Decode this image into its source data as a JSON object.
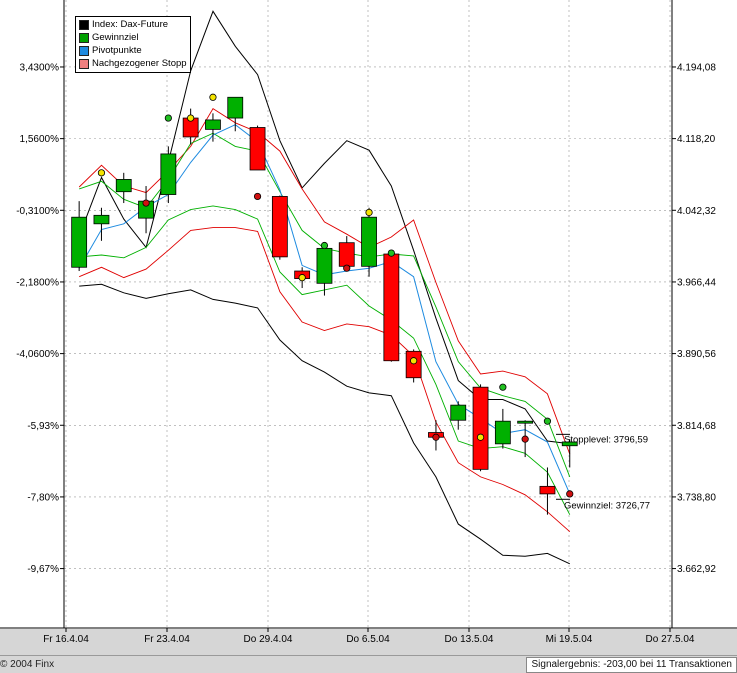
{
  "chart_data": {
    "type": "candlestick",
    "legend": [
      {
        "label": "Index: Dax-Future",
        "color": "#000000"
      },
      {
        "label": "Gewinnziel",
        "color": "#00a000"
      },
      {
        "label": "Pivotpunkte",
        "color": "#1e8be0"
      },
      {
        "label": "Nachgezogener Stopp",
        "color": "#f08080"
      }
    ],
    "right_axis": {
      "ticks": [
        4194.08,
        4118.2,
        4042.32,
        3966.44,
        3890.56,
        3814.68,
        3738.8,
        3662.92
      ],
      "tick_labels": [
        "4.194,08",
        "4.118,20",
        "4.042,32",
        "3.966,44",
        "3.890,56",
        "3.814,68",
        "3.738,80",
        "3.662,92"
      ],
      "range": [
        3600,
        4265
      ]
    },
    "left_axis": {
      "tick_labels": [
        "3,4300%",
        "1,5600%",
        "-0,3100%",
        "-2,1800%",
        "-4,0600%",
        "-5,93%",
        "-7,80%",
        "-9,67%"
      ]
    },
    "x_axis": {
      "tick_labels": [
        "Fr 16.4.04",
        "Fr 23.4.04",
        "Do 29.4.04",
        "Do 6.5.04",
        "Do 13.5.04",
        "Mi 19.5.04",
        "Do 27.5.04"
      ]
    },
    "candles": [
      {
        "o": 3982,
        "h": 4052,
        "l": 3978,
        "c": 4035,
        "pivot": 3992
      },
      {
        "o": 4028,
        "h": 4045,
        "l": 4010,
        "c": 4037,
        "pivot": 4028
      },
      {
        "o": 4062,
        "h": 4082,
        "l": 4050,
        "c": 4075,
        "pivot": 4065
      },
      {
        "o": 4034,
        "h": 4068,
        "l": 4018,
        "c": 4052,
        "pivot": 4034
      },
      {
        "o": 4059,
        "h": 4110,
        "l": 4050,
        "c": 4102,
        "pivot": 4060
      },
      {
        "o": 4140,
        "h": 4150,
        "l": 4112,
        "c": 4120,
        "pivot": 4137
      },
      {
        "o": 4128,
        "h": 4145,
        "l": 4115,
        "c": 4138,
        "pivot": 4135
      },
      {
        "o": 4140,
        "h": 4162,
        "l": 4126,
        "c": 4162,
        "pivot": 4162
      },
      {
        "o": 4130,
        "h": 4132,
        "l": 4085,
        "c": 4085,
        "pivot": 4132
      },
      {
        "o": 4057,
        "h": 4058,
        "l": 3990,
        "c": 3993,
        "pivot": 4054
      },
      {
        "o": 3978,
        "h": 3982,
        "l": 3960,
        "c": 3970,
        "pivot": 3970
      },
      {
        "o": 3965,
        "h": 4005,
        "l": 3952,
        "c": 4002,
        "pivot": 3980
      },
      {
        "o": 4008,
        "h": 4015,
        "l": 3980,
        "c": 3983,
        "pivot": 3983
      },
      {
        "o": 3983,
        "h": 4045,
        "l": 3972,
        "c": 4035,
        "pivot": 4035
      },
      {
        "o": 3996,
        "h": 4000,
        "l": 3882,
        "c": 3883,
        "pivot": 3883
      },
      {
        "o": 3893,
        "h": 3895,
        "l": 3860,
        "c": 3865,
        "pivot": 3865
      },
      {
        "o": 3807,
        "h": 3820,
        "l": 3788,
        "c": 3802,
        "pivot": 3802
      },
      {
        "o": 3820,
        "h": 3840,
        "l": 3810,
        "c": 3836,
        "pivot": 3820
      },
      {
        "o": 3855,
        "h": 3858,
        "l": 3766,
        "c": 3768,
        "pivot": 3855
      },
      {
        "o": 3795,
        "h": 3832,
        "l": 3790,
        "c": 3819,
        "pivot": 3819
      },
      {
        "o": 3819,
        "h": 3820,
        "l": 3781,
        "c": 3819,
        "pivot": 3819
      },
      {
        "o": 3750,
        "h": 3770,
        "l": 3720,
        "c": 3742,
        "pivot": 3742
      },
      {
        "o": 3793,
        "h": 3800,
        "l": 3770,
        "c": 3797,
        "pivot": 3797
      }
    ],
    "bands": {
      "black_upper": [
        4015,
        4077,
        4033,
        4003,
        4093,
        4190,
        4253,
        4216,
        4186,
        4116,
        4066,
        4092,
        4116,
        4106,
        4068,
        4000,
        3928,
        3862,
        3842,
        3842,
        3832,
        3798,
        3795
      ],
      "red_upper": [
        4067,
        4090,
        4068,
        4061,
        4084,
        4110,
        4150,
        4135,
        4125,
        4105,
        4065,
        4030,
        4017,
        4003,
        4014,
        4032,
        3966,
        3904,
        3869,
        3872,
        3866,
        3848,
        3784
      ],
      "green_upper": [
        4065,
        4073,
        4054,
        4045,
        4075,
        4113,
        4124,
        4110,
        4105,
        4062,
        4021,
        4002,
        3997,
        3993,
        3996,
        3994,
        3940,
        3882,
        3854,
        3846,
        3840,
        3821,
        3760
      ],
      "blue_pivot": [
        3981,
        4022,
        4028,
        4046,
        4059,
        4093,
        4122,
        4133,
        4115,
        4064,
        3984,
        3974,
        3978,
        3981,
        3988,
        3972,
        3882,
        3837,
        3822,
        3806,
        3810,
        3797,
        3742
      ],
      "green_lower": [
        3993,
        3995,
        3992,
        4003,
        4032,
        4043,
        4047,
        4043,
        4033,
        3977,
        3953,
        3958,
        3963,
        3941,
        3926,
        3907,
        3858,
        3798,
        3790,
        3792,
        3785,
        3765,
        3720
      ],
      "red_lower": [
        3972,
        3982,
        3971,
        3980,
        4000,
        4021,
        4024,
        4024,
        4020,
        3956,
        3924,
        3915,
        3922,
        3919,
        3910,
        3888,
        3818,
        3775,
        3760,
        3752,
        3741,
        3723,
        3702
      ],
      "black_lower": [
        3962,
        3964,
        3955,
        3949,
        3954,
        3958,
        3948,
        3944,
        3939,
        3905,
        3883,
        3871,
        3856,
        3849,
        3846,
        3796,
        3760,
        3710,
        3694,
        3677,
        3676,
        3679,
        3668
      ]
    },
    "markers": [
      {
        "i": 2,
        "v": 4082,
        "color": "#f5e400"
      },
      {
        "i": 4,
        "v": 4050,
        "color": "#d01010"
      },
      {
        "i": 5,
        "v": 4140,
        "color": "#20c020"
      },
      {
        "i": 6,
        "v": 4140,
        "color": "#f5e400"
      },
      {
        "i": 7,
        "v": 4162,
        "color": "#f5e400"
      },
      {
        "i": 9,
        "v": 4057,
        "color": "#d01010"
      },
      {
        "i": 11,
        "v": 3971,
        "color": "#f5e400"
      },
      {
        "i": 12,
        "v": 4005,
        "color": "#20c020"
      },
      {
        "i": 13,
        "v": 3981,
        "color": "#d01010"
      },
      {
        "i": 14,
        "v": 4040,
        "color": "#f5e400"
      },
      {
        "i": 15,
        "v": 3997,
        "color": "#20c020"
      },
      {
        "i": 16,
        "v": 3883,
        "color": "#f5e400"
      },
      {
        "i": 17,
        "v": 3802,
        "color": "#d01010"
      },
      {
        "i": 19,
        "v": 3802,
        "color": "#f5e400"
      },
      {
        "i": 20,
        "v": 3855,
        "color": "#20c020"
      },
      {
        "i": 21,
        "v": 3800,
        "color": "#d01010"
      },
      {
        "i": 22,
        "v": 3819,
        "color": "#20c020"
      },
      {
        "i": 23,
        "v": 3742,
        "color": "#d01010"
      }
    ],
    "annotations": {
      "stop_label": "Stopplevel: 3796,59",
      "stop_value": 3796.59,
      "target_label": "Gewinnziel: 3726,77",
      "target_value": 3726.77
    },
    "grid": true
  },
  "footer": {
    "copyright": "© 2004 Finx",
    "signal": "Signalergebnis: -203,00 bei 11 Transaktionen"
  }
}
